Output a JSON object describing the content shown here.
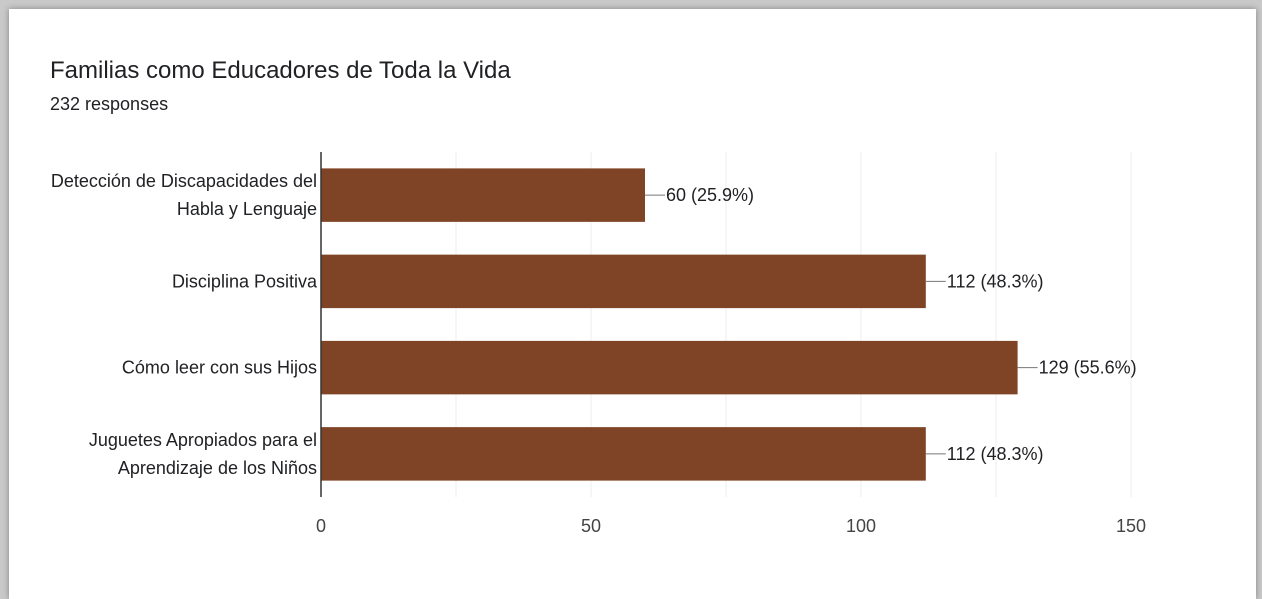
{
  "header": {
    "title": "Familias como Educadores de Toda la Vida",
    "responses": "232 responses"
  },
  "colors": {
    "bar": "#7e4425",
    "grid": "#eeeeee",
    "axis": "#333333",
    "text": "#202124",
    "tick_text": "#444444"
  },
  "chart_data": {
    "type": "bar",
    "orientation": "horizontal",
    "categories": [
      [
        "Detección de Discapacidades del",
        "Habla y Lenguaje"
      ],
      [
        "Disciplina Positiva"
      ],
      [
        "Cómo leer con sus Hijos"
      ],
      [
        "Juguetes Apropiados para el",
        "Aprendizaje de los Niños"
      ]
    ],
    "values": [
      60,
      112,
      129,
      112
    ],
    "data_labels": [
      "60 (25.9%)",
      "112 (48.3%)",
      "129 (55.6%)",
      "112 (48.3%)"
    ],
    "xlim": [
      0,
      150
    ],
    "xticks": [
      0,
      50,
      100,
      150
    ],
    "grid": true,
    "legend": "none"
  }
}
